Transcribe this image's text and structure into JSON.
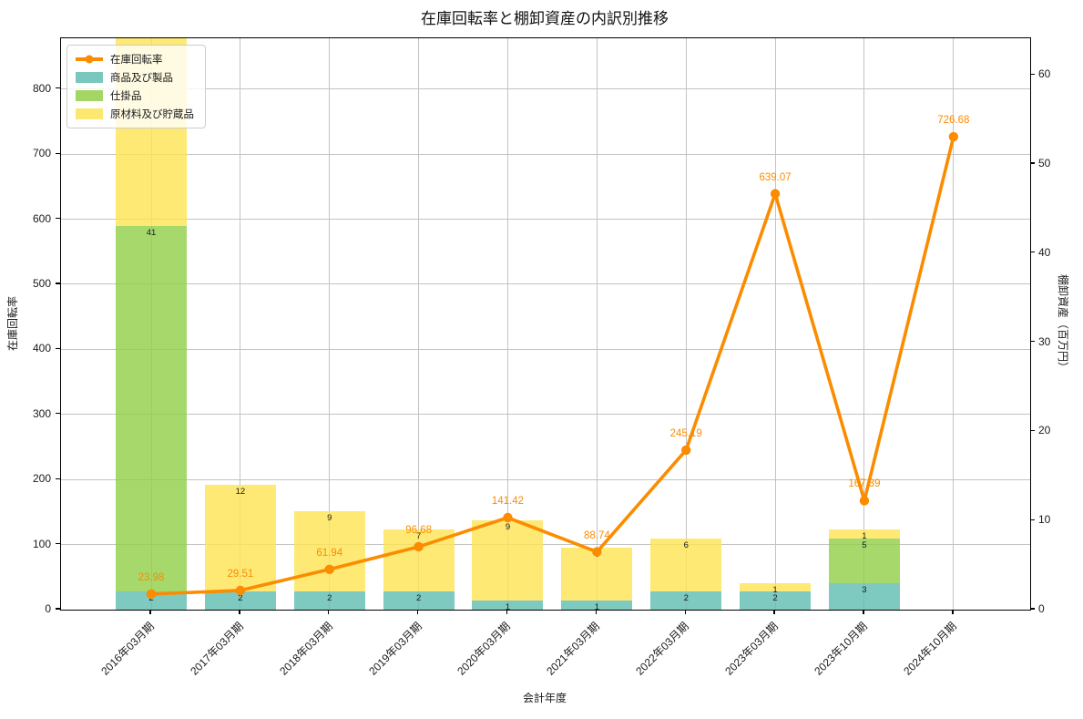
{
  "title_label": "在庫回転率と棚卸資産の内訳別推移",
  "colors": {
    "orange": "#fb8c00",
    "teal": "#62bdb2",
    "green": "#93cf4a",
    "yellow": "#fce455",
    "grid": "#c3c3c3",
    "axis": "#000000",
    "bar_label_text": "#1a1a1a"
  },
  "legend": {
    "items": [
      {
        "type": "line",
        "label": "在庫回転率",
        "color_key": "orange"
      },
      {
        "type": "patch",
        "label": "商品及び製品",
        "color_key": "teal"
      },
      {
        "type": "patch",
        "label": "仕掛品",
        "color_key": "green"
      },
      {
        "type": "patch",
        "label": "原材料及び貯蔵品",
        "color_key": "yellow"
      }
    ]
  },
  "axes": {
    "x_label": "会計年度",
    "y_left_label": "在庫回転率",
    "y_right_label": "棚卸資産（百万円）",
    "y_left_ticks": [
      0,
      100,
      200,
      300,
      400,
      500,
      600,
      700,
      800
    ],
    "y_right_ticks": [
      0,
      10,
      20,
      30,
      40,
      50,
      60
    ]
  },
  "chart_data": {
    "type": "bar",
    "stacked": true,
    "grid": true,
    "legend_position": "upper left",
    "title": "在庫回転率と棚卸資産の内訳別推移",
    "xlabel": "会計年度",
    "ylabel_left": "在庫回転率",
    "ylabel_right": "棚卸資産（百万円）",
    "ylim_left": [
      0,
      878
    ],
    "ylim_right": [
      0,
      64.1
    ],
    "categories": [
      "2016年03月期",
      "2017年03月期",
      "2018年03月期",
      "2019年03月期",
      "2020年03月期",
      "2021年03月期",
      "2022年03月期",
      "2023年03月期",
      "2023年10月期",
      "2024年10月期"
    ],
    "series": [
      {
        "name": "商品及び製品",
        "type": "bar",
        "axis": "right",
        "color_key": "teal",
        "values": [
          2,
          2,
          2,
          2,
          1,
          1,
          2,
          2,
          3,
          0
        ],
        "labels": [
          "2",
          "2",
          "2",
          "2",
          "1",
          "1",
          "2",
          "2",
          "3",
          ""
        ]
      },
      {
        "name": "仕掛品",
        "type": "bar",
        "axis": "right",
        "color_key": "green",
        "values": [
          41,
          0,
          0,
          0,
          0,
          0,
          0,
          0,
          5,
          0
        ],
        "labels": [
          "41",
          "",
          "",
          "",
          "",
          "",
          "",
          "",
          "5",
          ""
        ]
      },
      {
        "name": "原材料及び貯蔵品",
        "type": "bar",
        "axis": "right",
        "color_key": "yellow",
        "values": [
          25,
          12,
          9,
          7,
          9,
          6,
          6,
          1,
          1,
          0
        ],
        "labels": [
          "",
          "12",
          "9",
          "7",
          "9",
          "6",
          "6",
          "1",
          "1",
          ""
        ]
      },
      {
        "name": "在庫回転率",
        "type": "line",
        "axis": "left",
        "color_key": "orange",
        "values": [
          23.98,
          29.51,
          61.94,
          96.68,
          141.42,
          88.74,
          245.19,
          639.07,
          167.39,
          726.68
        ],
        "labels": [
          "23.98",
          "29.51",
          "61.94",
          "96.68",
          "141.42",
          "88.74",
          "245.19",
          "639.07",
          "167.39",
          "726.68"
        ]
      }
    ],
    "notes": "2016年03月期の原材料及び貯蔵品の区分は右軸上限を超えて上端が切れており、その区分ラベルは表示されていない"
  }
}
